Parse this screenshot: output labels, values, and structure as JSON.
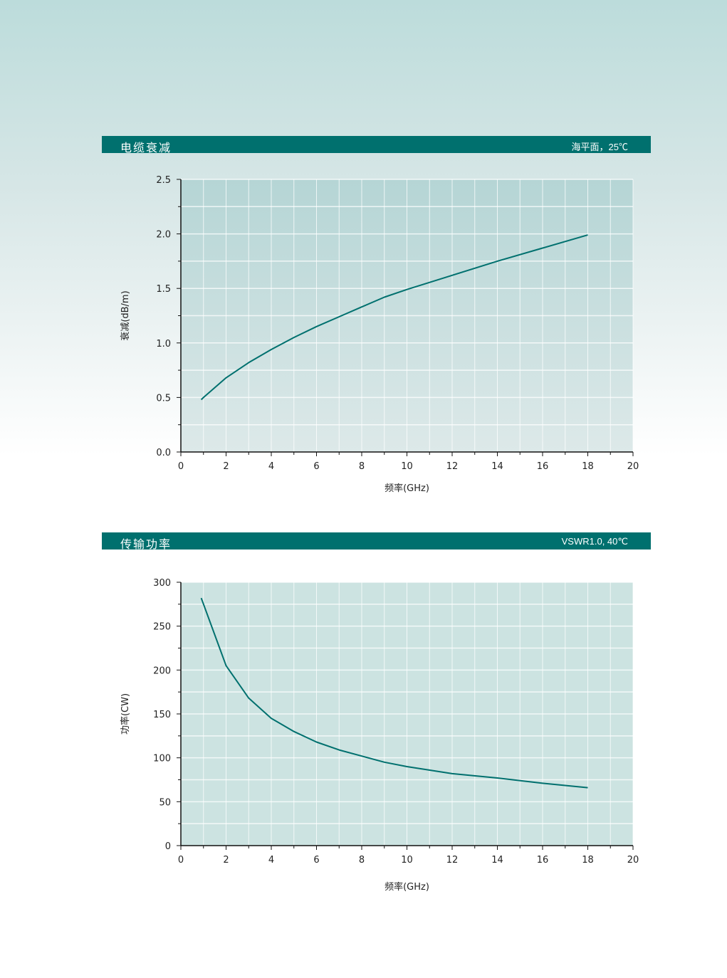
{
  "chart_data": [
    {
      "type": "line",
      "header": {
        "title": "电缆衰减",
        "condition": "海平面，25℃"
      },
      "xlabel": "频率(GHz)",
      "ylabel": "衰减(dB/m)",
      "xlim": [
        0,
        20
      ],
      "ylim": [
        0,
        2.5
      ],
      "xticks": [
        "0",
        "2",
        "4",
        "6",
        "8",
        "10",
        "12",
        "14",
        "16",
        "18",
        "20"
      ],
      "yticks": [
        "0.0",
        "0.5",
        "1.0",
        "1.5",
        "2.0",
        "2.5"
      ],
      "grid": true,
      "line_color": "#00706e",
      "series": [
        {
          "x": [
            0.9,
            1,
            2,
            3,
            4,
            5,
            6,
            7,
            8,
            9,
            10,
            12,
            14,
            16,
            18
          ],
          "y": [
            0.48,
            0.5,
            0.68,
            0.82,
            0.94,
            1.05,
            1.15,
            1.24,
            1.33,
            1.42,
            1.49,
            1.62,
            1.75,
            1.87,
            1.99
          ]
        }
      ]
    },
    {
      "type": "line",
      "header": {
        "title": "传输功率",
        "condition": "VSWR1.0, 40℃"
      },
      "xlabel": "频率(GHz)",
      "ylabel": "功率(CW)",
      "xlim": [
        0,
        20
      ],
      "ylim": [
        0,
        300
      ],
      "xticks": [
        "0",
        "2",
        "4",
        "6",
        "8",
        "10",
        "12",
        "14",
        "16",
        "18",
        "20"
      ],
      "yticks": [
        "0",
        "50",
        "100",
        "150",
        "200",
        "250",
        "300"
      ],
      "grid": true,
      "line_color": "#00706e",
      "series": [
        {
          "x": [
            0.9,
            1,
            2,
            3,
            4,
            5,
            6,
            7,
            8,
            9,
            10,
            12,
            14,
            16,
            18
          ],
          "y": [
            282,
            275,
            205,
            168,
            145,
            130,
            118,
            109,
            102,
            95,
            90,
            82,
            77,
            71,
            66
          ]
        }
      ]
    }
  ]
}
